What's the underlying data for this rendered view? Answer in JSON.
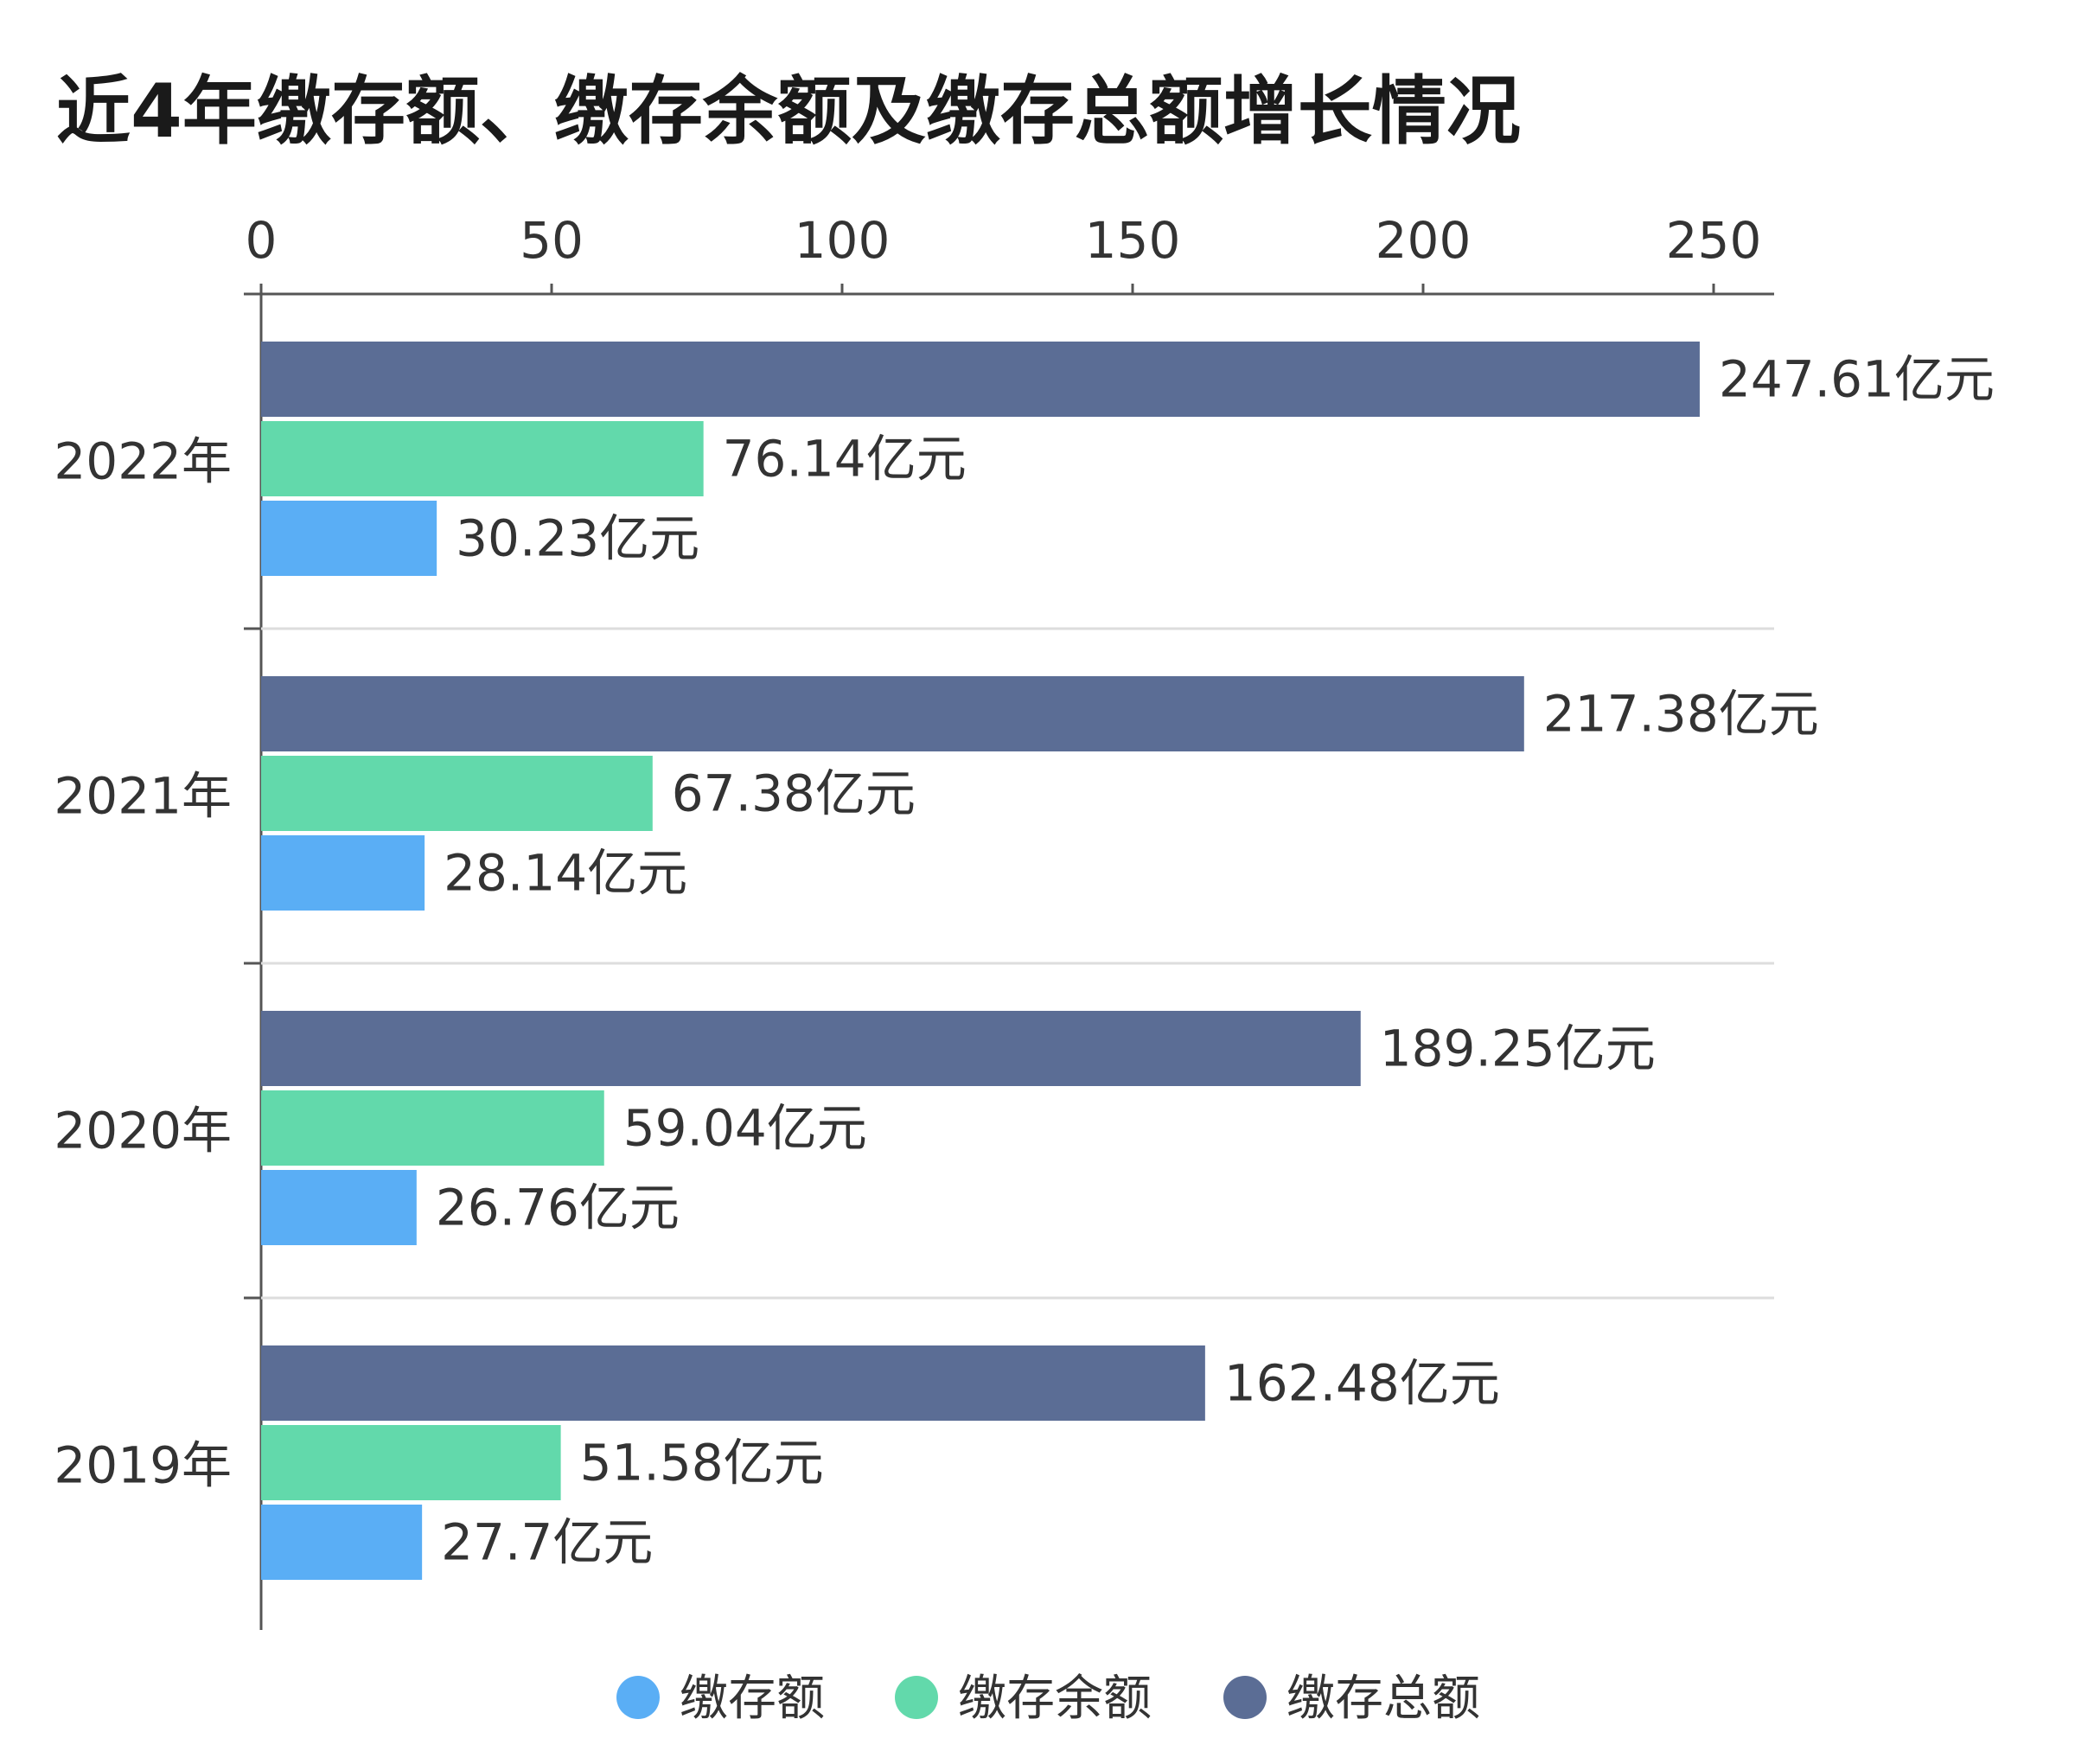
{
  "title": "近4年缴存额、缴存余额及缴存总额增长情况",
  "chart_data": {
    "type": "bar",
    "orientation": "horizontal",
    "title": "近4年缴存额、缴存余额及缴存总额增长情况",
    "categories": [
      "2022年",
      "2021年",
      "2020年",
      "2019年"
    ],
    "xlim": [
      0,
      260
    ],
    "x_ticks": [
      "0",
      "50",
      "100",
      "150",
      "200",
      "250"
    ],
    "x_axis_position": "top",
    "grid": "horizontal separators between categories",
    "legend_position": "bottom",
    "value_unit": "亿元",
    "series": [
      {
        "name": "缴存总额",
        "color": "#5b6d95",
        "values": [
          247.61,
          217.38,
          189.25,
          162.48
        ],
        "labels": [
          "247.61亿元",
          "217.38亿元",
          "189.25亿元",
          "162.48亿元"
        ]
      },
      {
        "name": "缴存余额",
        "color": "#62d9ab",
        "values": [
          76.14,
          67.38,
          59.04,
          51.58
        ],
        "labels": [
          "76.14亿元",
          "67.38亿元",
          "59.04亿元",
          "51.58亿元"
        ]
      },
      {
        "name": "缴存额",
        "color": "#5aaef5",
        "values": [
          30.23,
          28.14,
          26.76,
          27.7
        ],
        "labels": [
          "30.23亿元",
          "28.14亿元",
          "26.76亿元",
          "27.7亿元"
        ]
      }
    ],
    "legend": [
      {
        "name": "缴存额",
        "color": "#5aaef5"
      },
      {
        "name": "缴存余额",
        "color": "#62d9ab"
      },
      {
        "name": "缴存总额",
        "color": "#5b6d95"
      }
    ]
  }
}
